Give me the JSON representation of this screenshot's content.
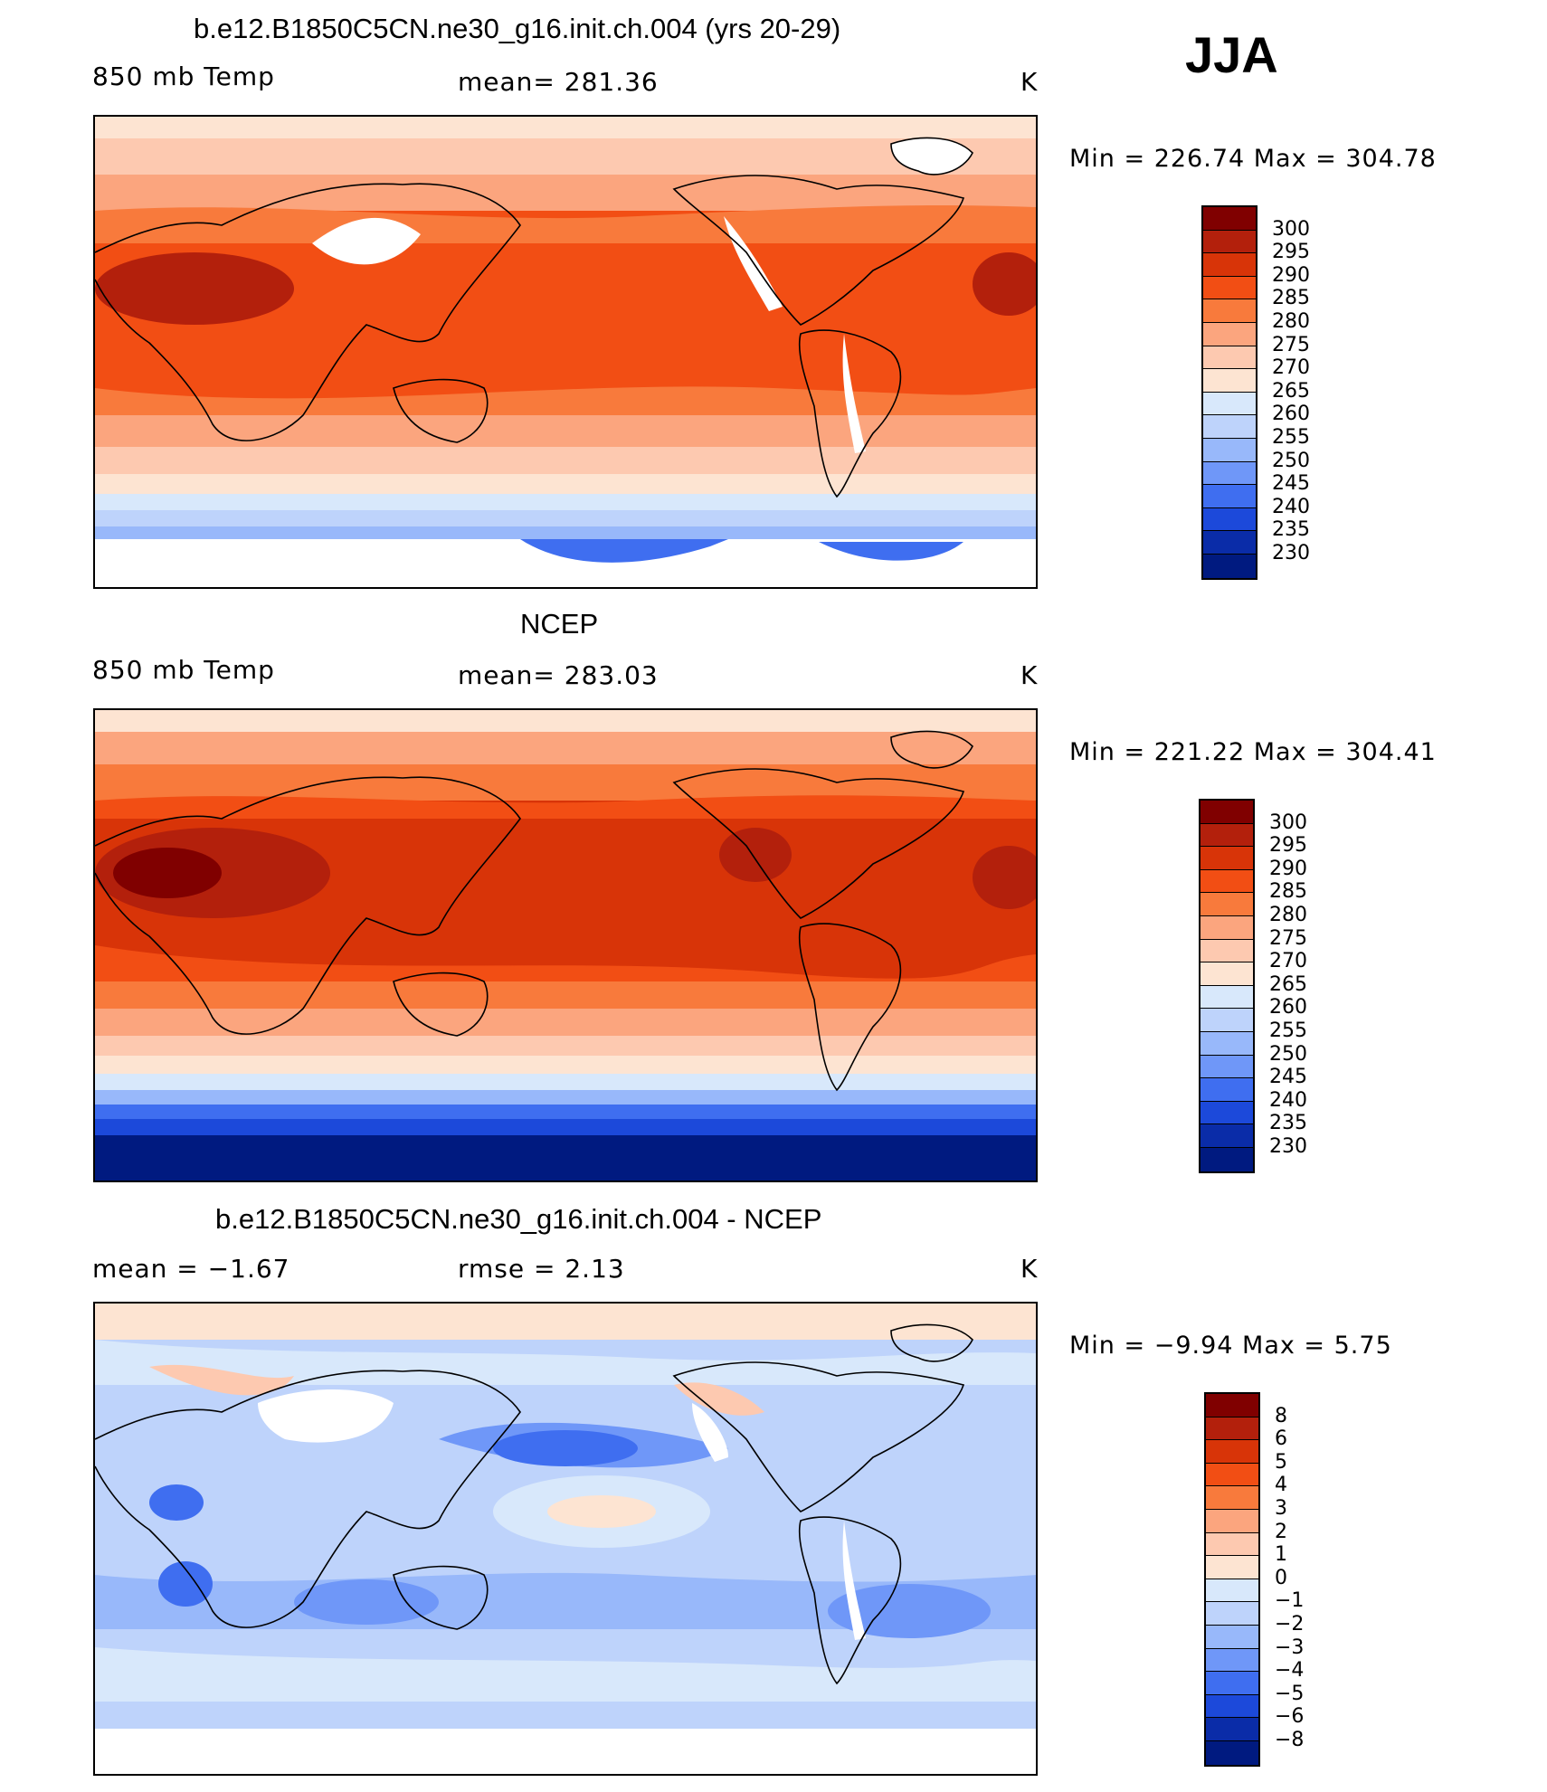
{
  "season": "JJA",
  "panels": [
    {
      "id": "model",
      "title": "b.e12.B1850C5CN.ne30_g16.init.ch.004 (yrs 20-29)",
      "left_label": "850 mb Temp",
      "center_label": "mean=  281.36",
      "units": "K",
      "minmax": "Min  =  226.74  Max  =  304.78",
      "colorbar_ticks": [
        "300",
        "295",
        "290",
        "285",
        "280",
        "275",
        "270",
        "265",
        "260",
        "255",
        "250",
        "245",
        "240",
        "235",
        "230"
      ],
      "colorbar_colors": [
        "#800000",
        "#b3200c",
        "#d83408",
        "#f24e14",
        "#f87a3c",
        "#fba57e",
        "#fdc9b0",
        "#fde4d2",
        "#d8e8fb",
        "#bed3fb",
        "#98b8fa",
        "#6f97f8",
        "#3f6ef0",
        "#1c49da",
        "#0a2ca8",
        "#001a80"
      ]
    },
    {
      "id": "obs",
      "title": "NCEP",
      "left_label": "850 mb Temp",
      "center_label": "mean=  283.03",
      "units": "K",
      "minmax": "Min  =  221.22  Max  =  304.41",
      "colorbar_ticks": [
        "300",
        "295",
        "290",
        "285",
        "280",
        "275",
        "270",
        "265",
        "260",
        "255",
        "250",
        "245",
        "240",
        "235",
        "230"
      ],
      "colorbar_colors": [
        "#800000",
        "#b3200c",
        "#d83408",
        "#f24e14",
        "#f87a3c",
        "#fba57e",
        "#fdc9b0",
        "#fde4d2",
        "#d8e8fb",
        "#bed3fb",
        "#98b8fa",
        "#6f97f8",
        "#3f6ef0",
        "#1c49da",
        "#0a2ca8",
        "#001a80"
      ]
    },
    {
      "id": "diff",
      "title": "b.e12.B1850C5CN.ne30_g16.init.ch.004 - NCEP",
      "left_label": "mean =    −1.67",
      "center_label": "rmse =     2.13",
      "units": "K",
      "minmax": "Min  =    −9.94  Max  =     5.75",
      "colorbar_ticks": [
        "8",
        "6",
        "5",
        "4",
        "3",
        "2",
        "1",
        "0",
        "−1",
        "−2",
        "−3",
        "−4",
        "−5",
        "−6",
        "−8"
      ],
      "colorbar_colors": [
        "#800000",
        "#b3200c",
        "#d83408",
        "#f24e14",
        "#f87a3c",
        "#fba57e",
        "#fdc9b0",
        "#fde4d2",
        "#d8e8fb",
        "#bed3fb",
        "#98b8fa",
        "#6f97f8",
        "#3f6ef0",
        "#1c49da",
        "#0a2ca8",
        "#001a80"
      ]
    }
  ]
}
